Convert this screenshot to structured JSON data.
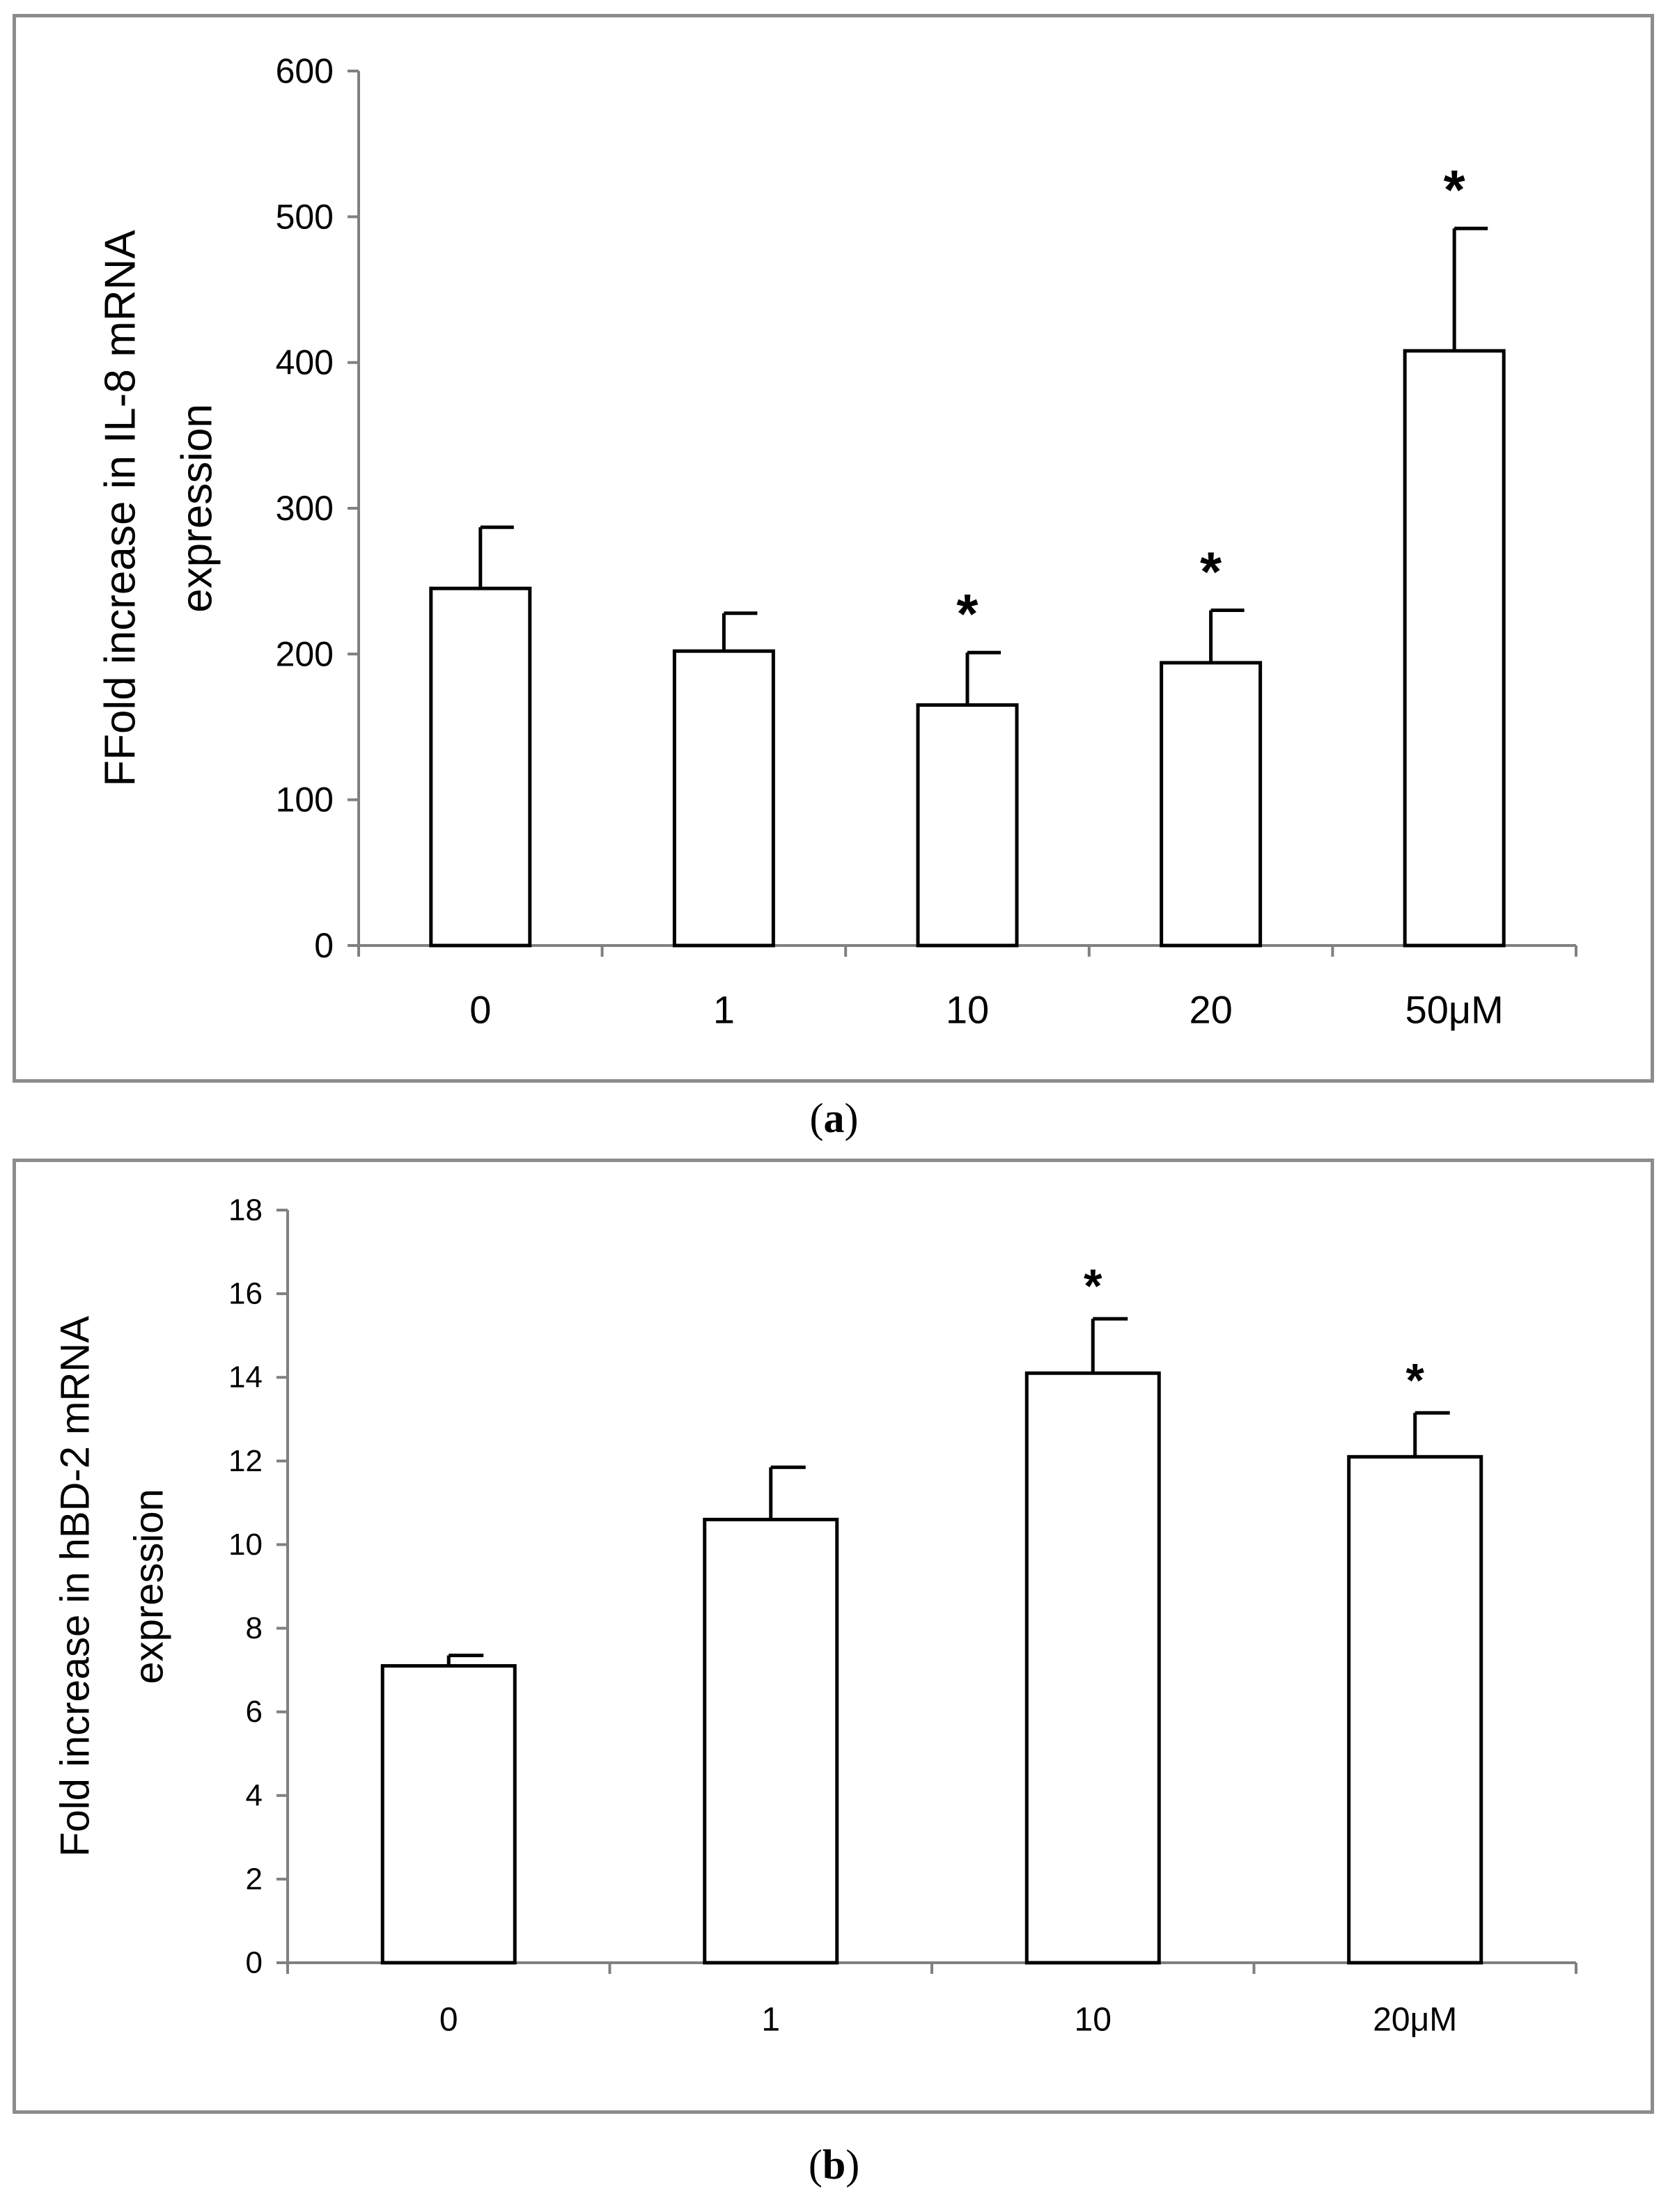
{
  "chart_data": [
    {
      "type": "bar",
      "panel": "a",
      "caption_letter": "a",
      "categories": [
        "0",
        "1",
        "10",
        "20",
        "50μM"
      ],
      "values": [
        245,
        202,
        165,
        194,
        408
      ],
      "errors": [
        42,
        26,
        36,
        36,
        84
      ],
      "significant": [
        false,
        false,
        true,
        true,
        true
      ],
      "marker": "*",
      "ylabel_lines": [
        "FFold increase in IL-8 mRNA",
        "expression"
      ],
      "xlabel": "",
      "ylim": [
        0,
        600
      ],
      "yticks": [
        0,
        100,
        200,
        300,
        400,
        500,
        600
      ],
      "grid": false,
      "legend": "none",
      "colors": {
        "bar_fill": "#ffffff",
        "bar_stroke": "#000000",
        "axis": "#808080"
      }
    },
    {
      "type": "bar",
      "panel": "b",
      "caption_letter": "b",
      "categories": [
        "0",
        "1",
        "10",
        "20μM"
      ],
      "values": [
        7.1,
        10.6,
        14.1,
        12.1
      ],
      "errors": [
        0.25,
        1.25,
        1.3,
        1.05
      ],
      "significant": [
        false,
        false,
        true,
        true
      ],
      "marker": "*",
      "ylabel_lines": [
        "Fold increase in hBD-2 mRNA",
        "expression"
      ],
      "xlabel": "",
      "ylim": [
        0,
        18
      ],
      "yticks": [
        0,
        2,
        4,
        6,
        8,
        10,
        12,
        14,
        16,
        18
      ],
      "grid": false,
      "legend": "none",
      "colors": {
        "bar_fill": "#ffffff",
        "bar_stroke": "#000000",
        "axis": "#808080"
      }
    }
  ]
}
